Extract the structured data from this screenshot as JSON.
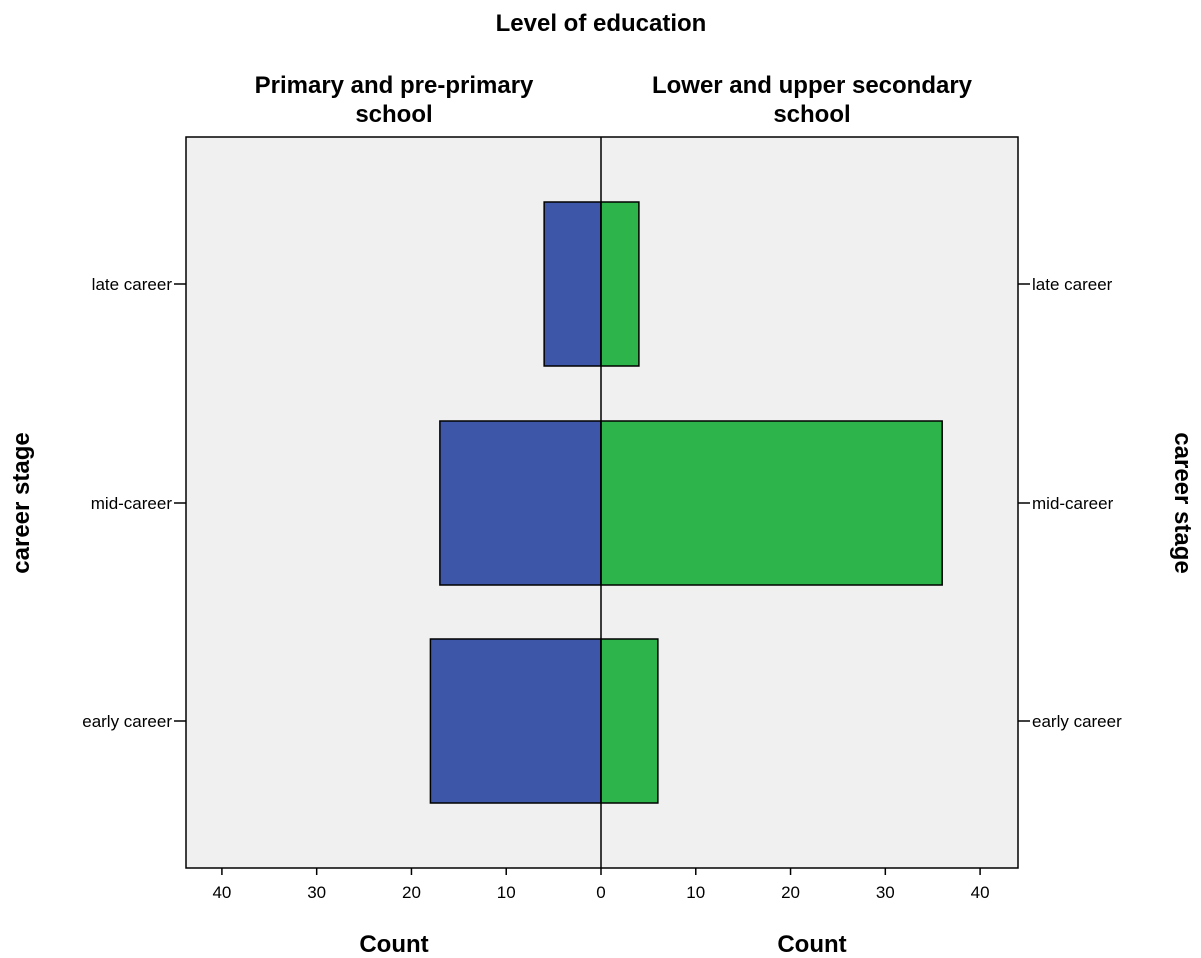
{
  "chart_data": {
    "type": "bar",
    "orientation": "horizontal",
    "layout": "population-pyramid",
    "title": "Level of education",
    "panels": [
      {
        "name_lines": [
          "Primary and pre-primary",
          "school"
        ],
        "side": "left",
        "color": "#3d56a8",
        "xlabel": "Count"
      },
      {
        "name_lines": [
          "Lower and upper secondary",
          "school"
        ],
        "side": "right",
        "color": "#2db44a",
        "xlabel": "Count"
      }
    ],
    "categories": [
      "late career",
      "mid-career",
      "early career"
    ],
    "series": [
      {
        "name": "Primary and pre-primary school",
        "values": [
          6,
          17,
          18
        ]
      },
      {
        "name": "Lower and upper secondary school",
        "values": [
          4,
          36,
          6
        ]
      }
    ],
    "ylabel": "career stage",
    "xlim": [
      0,
      44
    ],
    "xticks": [
      40,
      30,
      20,
      10,
      0,
      10,
      20,
      30,
      40
    ],
    "grid": false,
    "background": "#f0f0f0"
  }
}
